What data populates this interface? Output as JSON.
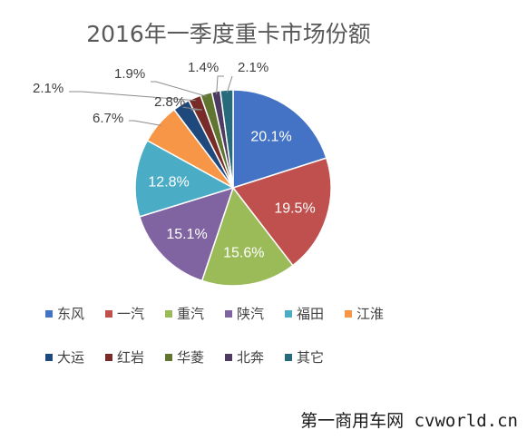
{
  "chart_data": {
    "type": "pie",
    "title": "2016年一季度重卡市场份额",
    "unit": "%",
    "categories": [
      "东风",
      "一汽",
      "重汽",
      "陕汽",
      "福田",
      "江淮",
      "大运",
      "红岩",
      "华菱",
      "北奔",
      "其它"
    ],
    "values": [
      20.1,
      19.5,
      15.6,
      15.1,
      12.8,
      6.7,
      2.8,
      2.1,
      1.9,
      1.4,
      2.1
    ],
    "value_labels": [
      "20.1%",
      "19.5%",
      "15.6%",
      "15.1%",
      "12.8%",
      "6.7%",
      "2.8%",
      "2.1%",
      "1.9%",
      "1.4%",
      "2.1%"
    ],
    "colors": [
      "#4472C4",
      "#C0504D",
      "#9BBB59",
      "#8064A2",
      "#4BACC6",
      "#F79646",
      "#1F497D",
      "#772C2A",
      "#5F7530",
      "#4D3B62",
      "#276A7C"
    ],
    "start": "12 o'clock",
    "direction": "clockwise",
    "legend": "bottom",
    "legend_marker": "square"
  },
  "watermark": "第一商用车网 cvworld.cn"
}
